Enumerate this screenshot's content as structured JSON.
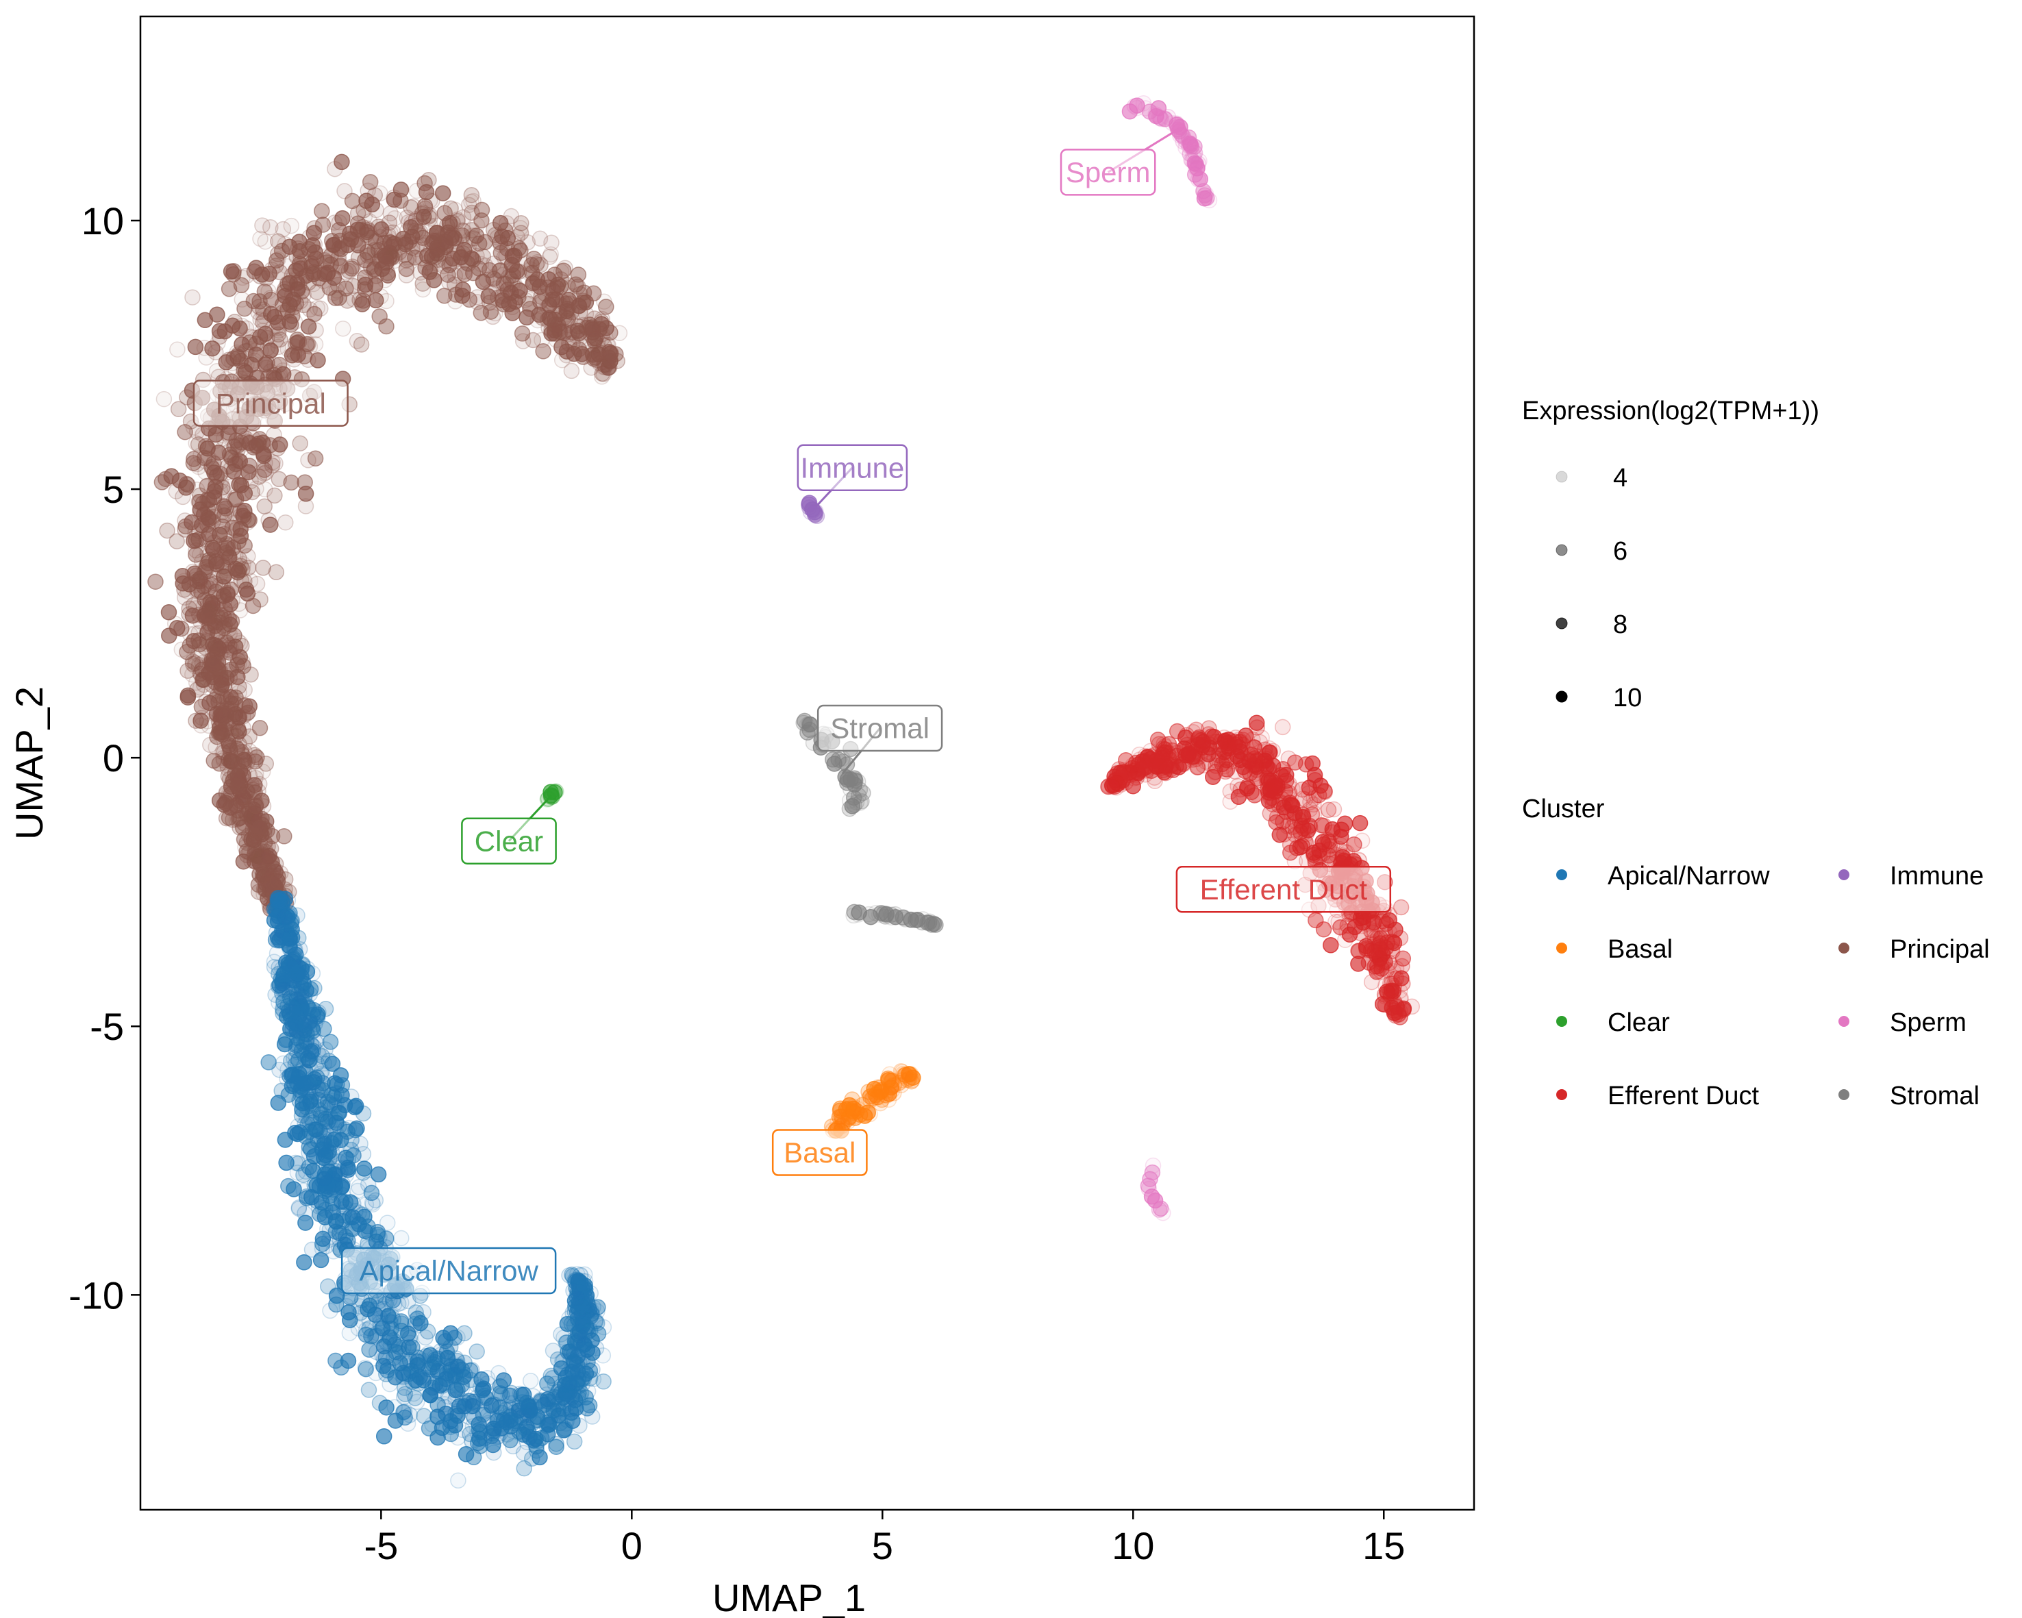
{
  "chart_data": {
    "type": "scatter",
    "title": "",
    "xlabel": "UMAP_1",
    "ylabel": "UMAP_2",
    "xlim": [
      -9.8,
      16.8
    ],
    "ylim": [
      -14,
      13.8
    ],
    "xticks": [
      -5,
      0,
      5,
      10,
      15
    ],
    "yticks": [
      -10,
      -5,
      0,
      5,
      10
    ],
    "xtick_labels": [
      "-5",
      "0",
      "5",
      "10",
      "15"
    ],
    "ytick_labels": [
      "-10",
      "-5",
      "0",
      "5",
      "10"
    ],
    "grid": false,
    "legend_position": "right",
    "size_legend": {
      "title": "Expression(log2(TPM+1))",
      "levels": [
        {
          "label": "4",
          "value": 4,
          "alpha": 0.15
        },
        {
          "label": "6",
          "value": 6,
          "alpha": 0.45
        },
        {
          "label": "8",
          "value": 8,
          "alpha": 0.75
        },
        {
          "label": "10",
          "value": 10,
          "alpha": 1.0
        }
      ]
    },
    "color_legend": {
      "title": "Cluster",
      "columns": 2,
      "entries": [
        {
          "name": "Apical/Narrow",
          "color": "#1f77b4"
        },
        {
          "name": "Basal",
          "color": "#ff7f0e"
        },
        {
          "name": "Clear",
          "color": "#2ca02c"
        },
        {
          "name": "Efferent Duct",
          "color": "#d62728"
        },
        {
          "name": "Immune",
          "color": "#9467bd"
        },
        {
          "name": "Principal",
          "color": "#8c564b"
        },
        {
          "name": "Sperm",
          "color": "#e377c2"
        },
        {
          "name": "Stromal",
          "color": "#7f7f7f"
        }
      ]
    },
    "series": [
      {
        "name": "Principal",
        "color": "#8c564b",
        "n": 1700,
        "spread": 0.45,
        "path": [
          [
            -0.4,
            7.2
          ],
          [
            -1.2,
            8.2
          ],
          [
            -2.8,
            9.3
          ],
          [
            -4.5,
            9.8
          ],
          [
            -6.2,
            9.3
          ],
          [
            -7.3,
            8.0
          ],
          [
            -7.9,
            6.0
          ],
          [
            -8.3,
            4.0
          ],
          [
            -8.4,
            2.0
          ],
          [
            -7.9,
            0.0
          ],
          [
            -7.4,
            -1.8
          ],
          [
            -7.0,
            -2.8
          ]
        ],
        "width": [
          0.25,
          0.9,
          1.1,
          1.1,
          1.2,
          1.3,
          1.3,
          1.0,
          0.8,
          0.5,
          0.35,
          0.2
        ]
      },
      {
        "name": "Apical/Narrow",
        "color": "#1f77b4",
        "n": 1300,
        "spread": 0.45,
        "path": [
          [
            -7.0,
            -2.6
          ],
          [
            -6.7,
            -4.5
          ],
          [
            -6.3,
            -6.5
          ],
          [
            -5.8,
            -8.5
          ],
          [
            -5.0,
            -10.5
          ],
          [
            -3.8,
            -11.8
          ],
          [
            -2.3,
            -12.5
          ],
          [
            -1.2,
            -12.0
          ],
          [
            -0.9,
            -10.5
          ],
          [
            -1.1,
            -9.6
          ]
        ],
        "width": [
          0.2,
          0.45,
          0.7,
          0.85,
          1.0,
          1.0,
          0.8,
          0.6,
          0.35,
          0.15
        ]
      },
      {
        "name": "Efferent Duct",
        "color": "#d62728",
        "n": 650,
        "spread": 0.45,
        "path": [
          [
            9.5,
            -0.5
          ],
          [
            10.5,
            0.0
          ],
          [
            11.8,
            0.2
          ],
          [
            12.8,
            -0.3
          ],
          [
            13.7,
            -1.5
          ],
          [
            14.5,
            -2.8
          ],
          [
            15.0,
            -3.8
          ],
          [
            15.3,
            -4.8
          ]
        ],
        "width": [
          0.15,
          0.3,
          0.5,
          0.7,
          0.75,
          0.65,
          0.45,
          0.25
        ]
      },
      {
        "name": "Basal",
        "color": "#ff7f0e",
        "n": 90,
        "spread": 0.3,
        "path": [
          [
            4.0,
            -6.9
          ],
          [
            4.6,
            -6.5
          ],
          [
            5.2,
            -6.1
          ],
          [
            5.6,
            -5.9
          ]
        ],
        "width": [
          0.2,
          0.35,
          0.3,
          0.2
        ]
      },
      {
        "name": "Sperm",
        "color": "#e377c2",
        "n": 60,
        "spread": 0.3,
        "path": [
          [
            10.0,
            12.1
          ],
          [
            10.6,
            12.0
          ],
          [
            11.1,
            11.5
          ],
          [
            11.3,
            10.8
          ],
          [
            11.5,
            10.3
          ]
        ],
        "width": [
          0.2,
          0.25,
          0.2,
          0.1,
          0.05
        ]
      },
      {
        "name": "Sperm",
        "color": "#e377c2",
        "n": 10,
        "spread": 0.3,
        "path": [
          [
            10.4,
            -7.4
          ],
          [
            10.3,
            -8.1
          ],
          [
            10.6,
            -8.5
          ]
        ],
        "width": [
          0.06,
          0.1,
          0.06
        ]
      },
      {
        "name": "Stromal",
        "color": "#7f7f7f",
        "n": 45,
        "spread": 0.35,
        "path": [
          [
            3.4,
            0.7
          ],
          [
            3.8,
            0.3
          ],
          [
            4.3,
            -0.2
          ],
          [
            4.5,
            -0.6
          ],
          [
            4.4,
            -1.0
          ]
        ],
        "width": [
          0.2,
          0.35,
          0.3,
          0.2,
          0.1
        ]
      },
      {
        "name": "Stromal",
        "color": "#7f7f7f",
        "n": 35,
        "spread": 0.3,
        "path": [
          [
            4.4,
            -2.9
          ],
          [
            5.0,
            -2.9
          ],
          [
            5.6,
            -3.0
          ],
          [
            6.1,
            -3.1
          ]
        ],
        "width": [
          0.06,
          0.07,
          0.07,
          0.06
        ]
      },
      {
        "name": "Immune",
        "color": "#9467bd",
        "n": 12,
        "spread": 0.3,
        "path": [
          [
            3.5,
            4.8
          ],
          [
            3.6,
            4.6
          ],
          [
            3.7,
            4.5
          ]
        ],
        "width": [
          0.07,
          0.08,
          0.05
        ]
      },
      {
        "name": "Clear",
        "color": "#2ca02c",
        "n": 12,
        "spread": 0.3,
        "path": [
          [
            -1.7,
            -0.8
          ],
          [
            -1.6,
            -0.7
          ],
          [
            -1.5,
            -0.6
          ]
        ],
        "width": [
          0.05,
          0.07,
          0.05
        ]
      }
    ],
    "annotations": [
      {
        "text": "Principal",
        "color": "#8c564b",
        "x": -7.2,
        "y": 6.6,
        "anchor": [
          -7.2,
          6.6
        ]
      },
      {
        "text": "Apical/Narrow",
        "color": "#1f77b4",
        "x": -3.65,
        "y": -9.55,
        "anchor": [
          -3.65,
          -9.55
        ]
      },
      {
        "text": "Clear",
        "color": "#2ca02c",
        "x": -2.45,
        "y": -1.55,
        "anchor": [
          -1.6,
          -0.7
        ]
      },
      {
        "text": "Immune",
        "color": "#9467bd",
        "x": 4.4,
        "y": 5.4,
        "anchor": [
          3.65,
          4.65
        ]
      },
      {
        "text": "Stromal",
        "color": "#7f7f7f",
        "x": 4.95,
        "y": 0.55,
        "anchor": [
          4.2,
          -0.3
        ]
      },
      {
        "text": "Basal",
        "color": "#ff7f0e",
        "x": 3.75,
        "y": -7.35,
        "anchor": [
          3.75,
          -7.35
        ]
      },
      {
        "text": "Sperm",
        "color": "#e377c2",
        "x": 9.5,
        "y": 10.9,
        "anchor": [
          10.9,
          11.7
        ]
      },
      {
        "text": "Efferent Duct",
        "color": "#d62728",
        "x": 13.0,
        "y": -2.45,
        "anchor": [
          13.0,
          -2.45
        ]
      }
    ]
  }
}
